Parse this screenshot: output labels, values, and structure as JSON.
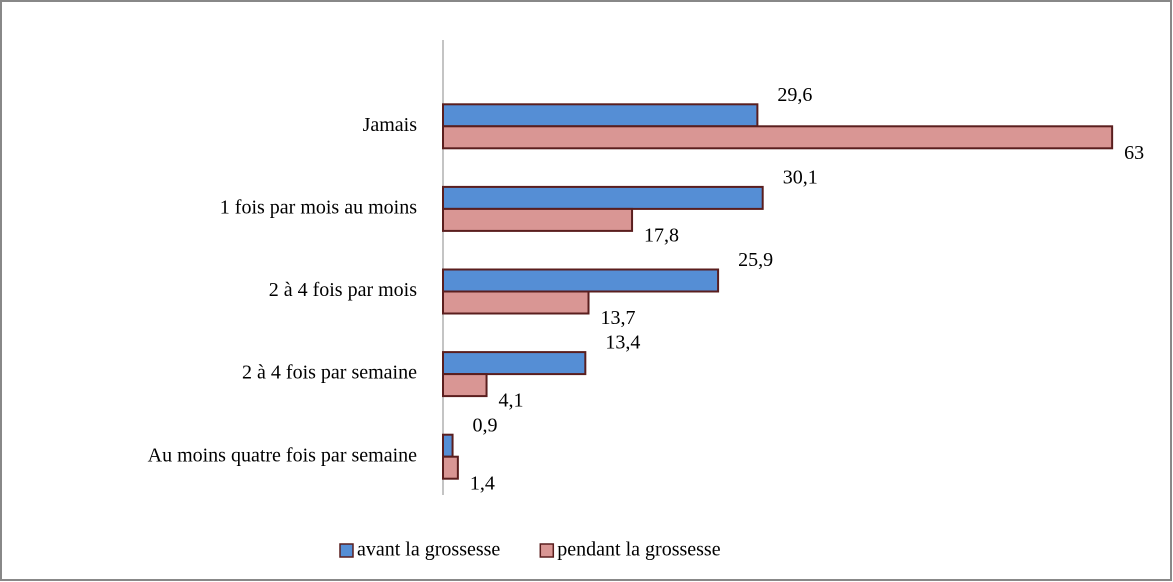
{
  "chart_data": {
    "type": "bar",
    "orientation": "horizontal",
    "categories": [
      "Jamais",
      "1 fois par mois au moins",
      "2 à 4 fois par mois",
      "2 à 4 fois par semaine",
      "Au moins quatre fois par semaine"
    ],
    "series": [
      {
        "name": "avant la grossesse",
        "color": "#558ed5",
        "values": [
          29.6,
          30.1,
          25.9,
          13.4,
          0.9
        ],
        "value_labels": [
          "29,6",
          "30,1",
          "25,9",
          "13,4",
          "0,9"
        ]
      },
      {
        "name": "pendant la grossesse",
        "color": "#d99694",
        "values": [
          63,
          17.8,
          13.7,
          4.1,
          1.4
        ],
        "value_labels": [
          "63",
          "17,8",
          "13,7",
          "4,1",
          "1,4"
        ]
      }
    ],
    "xlim": [
      0,
      66
    ],
    "legend": "bottom"
  }
}
